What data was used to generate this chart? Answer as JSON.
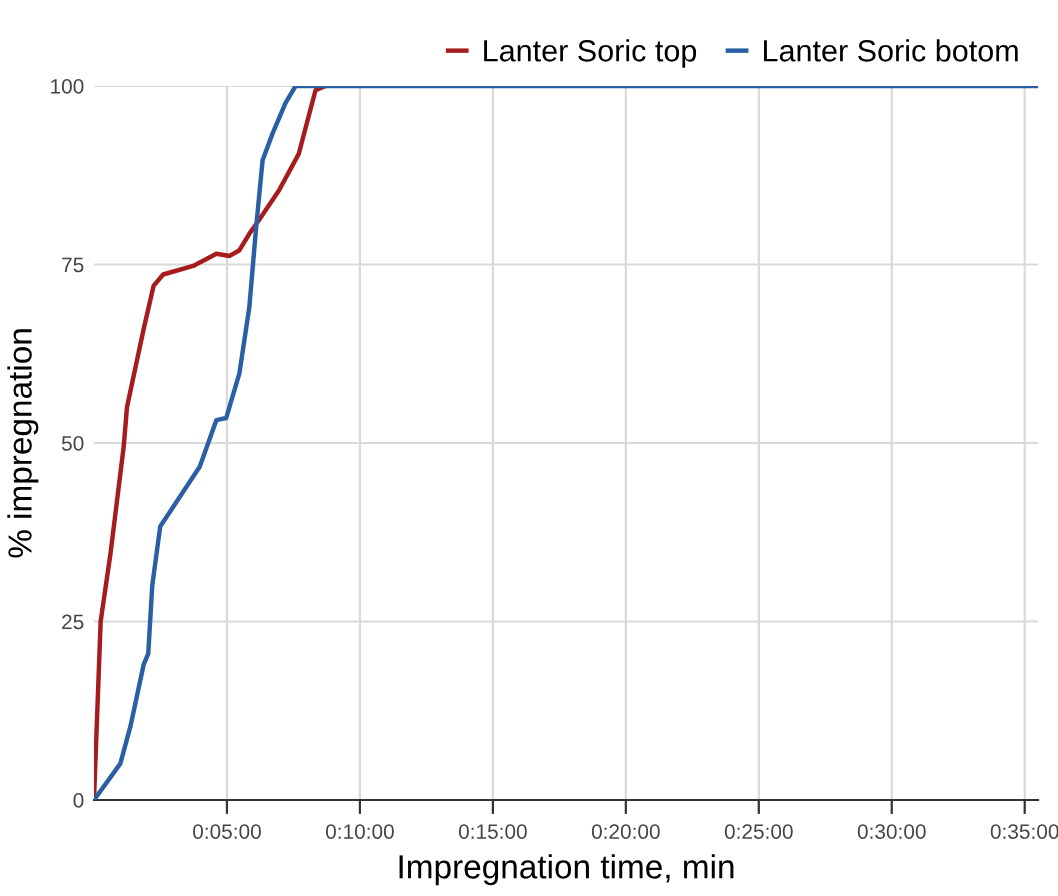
{
  "chart_data": {
    "type": "line",
    "xlabel": "Impregnation time, min",
    "ylabel": "% impregnation",
    "xlim": [
      0,
      35.5
    ],
    "ylim": [
      0,
      100
    ],
    "xticks": [
      {
        "value": 5,
        "label": "0:05:00"
      },
      {
        "value": 10,
        "label": "0:10:00"
      },
      {
        "value": 15,
        "label": "0:15:00"
      },
      {
        "value": 20,
        "label": "0:20:00"
      },
      {
        "value": 25,
        "label": "0:25:00"
      },
      {
        "value": 30,
        "label": "0:30:00"
      },
      {
        "value": 35,
        "label": "0:35:00"
      }
    ],
    "yticks": [
      0,
      25,
      50,
      75,
      100
    ],
    "grid": true,
    "legend": "top right",
    "marker": "none",
    "line_style": "solid",
    "series": [
      {
        "name": "Lanter Soric top",
        "color": "#a61c1c",
        "x": [
          0,
          0.25,
          0.62,
          1.12,
          1.24,
          1.87,
          2.24,
          2.6,
          3.73,
          4.6,
          5.1,
          5.47,
          5.84,
          6.2,
          6.96,
          7.7,
          8.33,
          8.7
        ],
        "values": [
          0,
          25,
          34.5,
          49.6,
          55,
          66,
          72,
          73.6,
          74.8,
          76.5,
          76.2,
          77,
          79.3,
          81.2,
          85.4,
          90.5,
          99.4,
          100
        ]
      },
      {
        "name": "Lanter Soric botom",
        "color": "#2a5fa5",
        "x": [
          0,
          0.99,
          1.37,
          1.87,
          2.04,
          2.19,
          2.49,
          3.98,
          4.6,
          4.97,
          5.47,
          5.84,
          6.1,
          6.34,
          6.72,
          7.2,
          7.58,
          35.5
        ],
        "values": [
          0,
          5.1,
          10.3,
          19,
          20.5,
          30,
          38.3,
          46.7,
          53.2,
          53.5,
          59.8,
          69,
          80.3,
          89.6,
          93.4,
          97.6,
          100,
          100
        ]
      }
    ]
  }
}
